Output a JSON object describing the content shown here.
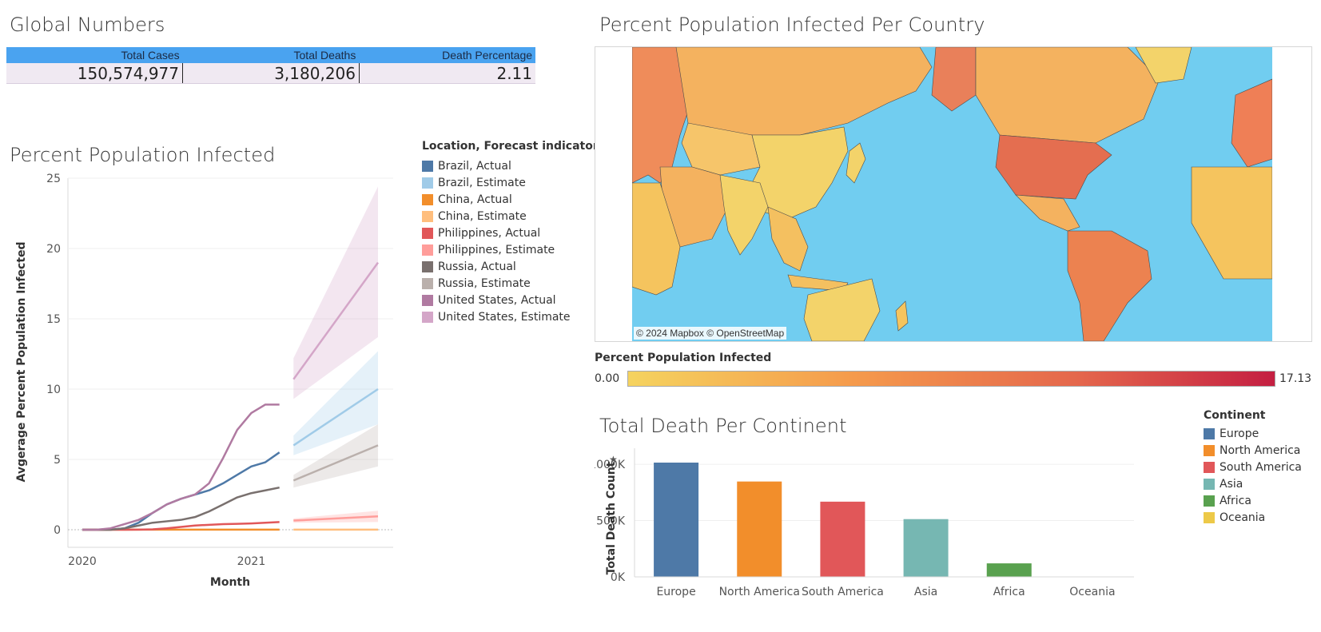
{
  "global": {
    "title": "Global Numbers",
    "headers": [
      "Total Cases",
      "Total Deaths",
      "Death Percentage"
    ],
    "values": [
      "150,574,977",
      "3,180,206",
      "2.11"
    ]
  },
  "infected": {
    "title": "Percent Population Infected",
    "legend_title": "Location, Forecast indicator",
    "legend": [
      {
        "label": "Brazil, Actual",
        "color": "#4e79a7"
      },
      {
        "label": "Brazil, Estimate",
        "color": "#a0cbe8"
      },
      {
        "label": "China, Actual",
        "color": "#f28e2b"
      },
      {
        "label": "China, Estimate",
        "color": "#ffbe7d"
      },
      {
        "label": "Philippines, Actual",
        "color": "#e15759"
      },
      {
        "label": "Philippines, Estimate",
        "color": "#ff9d9a"
      },
      {
        "label": "Russia, Actual",
        "color": "#79706e"
      },
      {
        "label": "Russia, Estimate",
        "color": "#bab0ac"
      },
      {
        "label": "United States, Actual",
        "color": "#b07aa1"
      },
      {
        "label": "United States, Estimate",
        "color": "#d4a6c8"
      }
    ]
  },
  "map": {
    "title": "Percent Population Infected Per Country",
    "credit": "© 2024 Mapbox © OpenStreetMap",
    "legend_title": "Percent Population Infected",
    "min_label": "0.00",
    "max_label": "17.13",
    "ocean_color": "#71cdf0"
  },
  "continent": {
    "title": "Total Death Per Continent",
    "legend_title": "Continent",
    "legend": [
      {
        "label": "Europe",
        "color": "#4e79a7"
      },
      {
        "label": "North America",
        "color": "#f28e2b"
      },
      {
        "label": "South America",
        "color": "#e15759"
      },
      {
        "label": "Asia",
        "color": "#76b7b2"
      },
      {
        "label": "Africa",
        "color": "#59a14f"
      },
      {
        "label": "Oceania",
        "color": "#edc948"
      }
    ]
  },
  "chart_data": [
    {
      "type": "line",
      "title": "Percent Population Infected",
      "xlabel": "Month",
      "ylabel": "Avgerage Percent Population Infected",
      "x_ticks": [
        "2020",
        "2021"
      ],
      "y_ticks": [
        "0",
        "5",
        "10",
        "15",
        "20",
        "25"
      ],
      "ylim": [
        0,
        25
      ],
      "x_range_months": [
        0,
        21
      ],
      "grid": true,
      "series": [
        {
          "name": "Brazil, Actual",
          "color": "#4e79a7",
          "x": [
            0,
            1,
            2,
            3,
            4,
            5,
            6,
            7,
            8,
            9,
            10,
            11,
            12,
            13,
            14
          ],
          "values": [
            0,
            0,
            0,
            0.1,
            0.5,
            1.2,
            1.8,
            2.2,
            2.5,
            2.8,
            3.3,
            3.9,
            4.5,
            4.8,
            5.5
          ]
        },
        {
          "name": "China, Actual",
          "color": "#f28e2b",
          "x": [
            0,
            1,
            2,
            3,
            4,
            5,
            6,
            7,
            8,
            9,
            10,
            11,
            12,
            13,
            14
          ],
          "values": [
            0,
            0.01,
            0.01,
            0.01,
            0.01,
            0.01,
            0.01,
            0.01,
            0.01,
            0.01,
            0.01,
            0.01,
            0.01,
            0.01,
            0.01
          ]
        },
        {
          "name": "Philippines, Actual",
          "color": "#e15759",
          "x": [
            0,
            1,
            2,
            3,
            4,
            5,
            6,
            7,
            8,
            9,
            10,
            11,
            12,
            13,
            14
          ],
          "values": [
            0,
            0,
            0,
            0,
            0.01,
            0.03,
            0.1,
            0.2,
            0.3,
            0.35,
            0.4,
            0.42,
            0.45,
            0.5,
            0.55
          ]
        },
        {
          "name": "Russia, Actual",
          "color": "#79706e",
          "x": [
            0,
            1,
            2,
            3,
            4,
            5,
            6,
            7,
            8,
            9,
            10,
            11,
            12,
            13,
            14
          ],
          "values": [
            0,
            0,
            0,
            0.1,
            0.3,
            0.5,
            0.6,
            0.7,
            0.9,
            1.3,
            1.8,
            2.3,
            2.6,
            2.8,
            3.0
          ]
        },
        {
          "name": "United States, Actual",
          "color": "#b07aa1",
          "x": [
            0,
            1,
            2,
            3,
            4,
            5,
            6,
            7,
            8,
            9,
            10,
            11,
            12,
            13,
            14
          ],
          "values": [
            0,
            0,
            0.1,
            0.4,
            0.7,
            1.2,
            1.8,
            2.2,
            2.5,
            3.3,
            5.1,
            7.1,
            8.3,
            8.9,
            8.9
          ]
        },
        {
          "name": "Brazil, Estimate",
          "color": "#a0cbe8",
          "x": [
            15,
            21
          ],
          "values": [
            6.0,
            10.0
          ],
          "band_low": [
            5.3,
            7.5
          ],
          "band_high": [
            6.7,
            12.7
          ]
        },
        {
          "name": "China, Estimate",
          "color": "#ffbe7d",
          "x": [
            15,
            21
          ],
          "values": [
            0.01,
            0.01
          ],
          "band_low": [
            0,
            0
          ],
          "band_high": [
            0.05,
            0.05
          ]
        },
        {
          "name": "Philippines, Estimate",
          "color": "#ff9d9a",
          "x": [
            15,
            21
          ],
          "values": [
            0.65,
            0.95
          ],
          "band_low": [
            0.5,
            0.55
          ],
          "band_high": [
            0.8,
            1.35
          ]
        },
        {
          "name": "Russia, Estimate",
          "color": "#bab0ac",
          "x": [
            15,
            21
          ],
          "values": [
            3.5,
            6.0
          ],
          "band_low": [
            3.0,
            4.5
          ],
          "band_high": [
            3.9,
            7.5
          ]
        },
        {
          "name": "United States, Estimate",
          "color": "#d4a6c8",
          "x": [
            15,
            21
          ],
          "values": [
            10.7,
            19.0
          ],
          "band_low": [
            9.3,
            13.7
          ],
          "band_high": [
            12.2,
            24.4
          ]
        }
      ]
    },
    {
      "type": "bar",
      "title": "Total Death Per Continent",
      "header": "Continent",
      "ylabel": "Total Death Count",
      "y_ticks": [
        "0K",
        "500K",
        "1000K"
      ],
      "ylim": [
        0,
        1100000
      ],
      "categories": [
        "Europe",
        "North America",
        "South America",
        "Asia",
        "Africa",
        "Oceania"
      ],
      "values": [
        1015000,
        847000,
        668000,
        513000,
        120000,
        1000
      ],
      "colors": [
        "#4e79a7",
        "#f28e2b",
        "#e15759",
        "#76b7b2",
        "#59a14f",
        "#edc948"
      ]
    }
  ]
}
